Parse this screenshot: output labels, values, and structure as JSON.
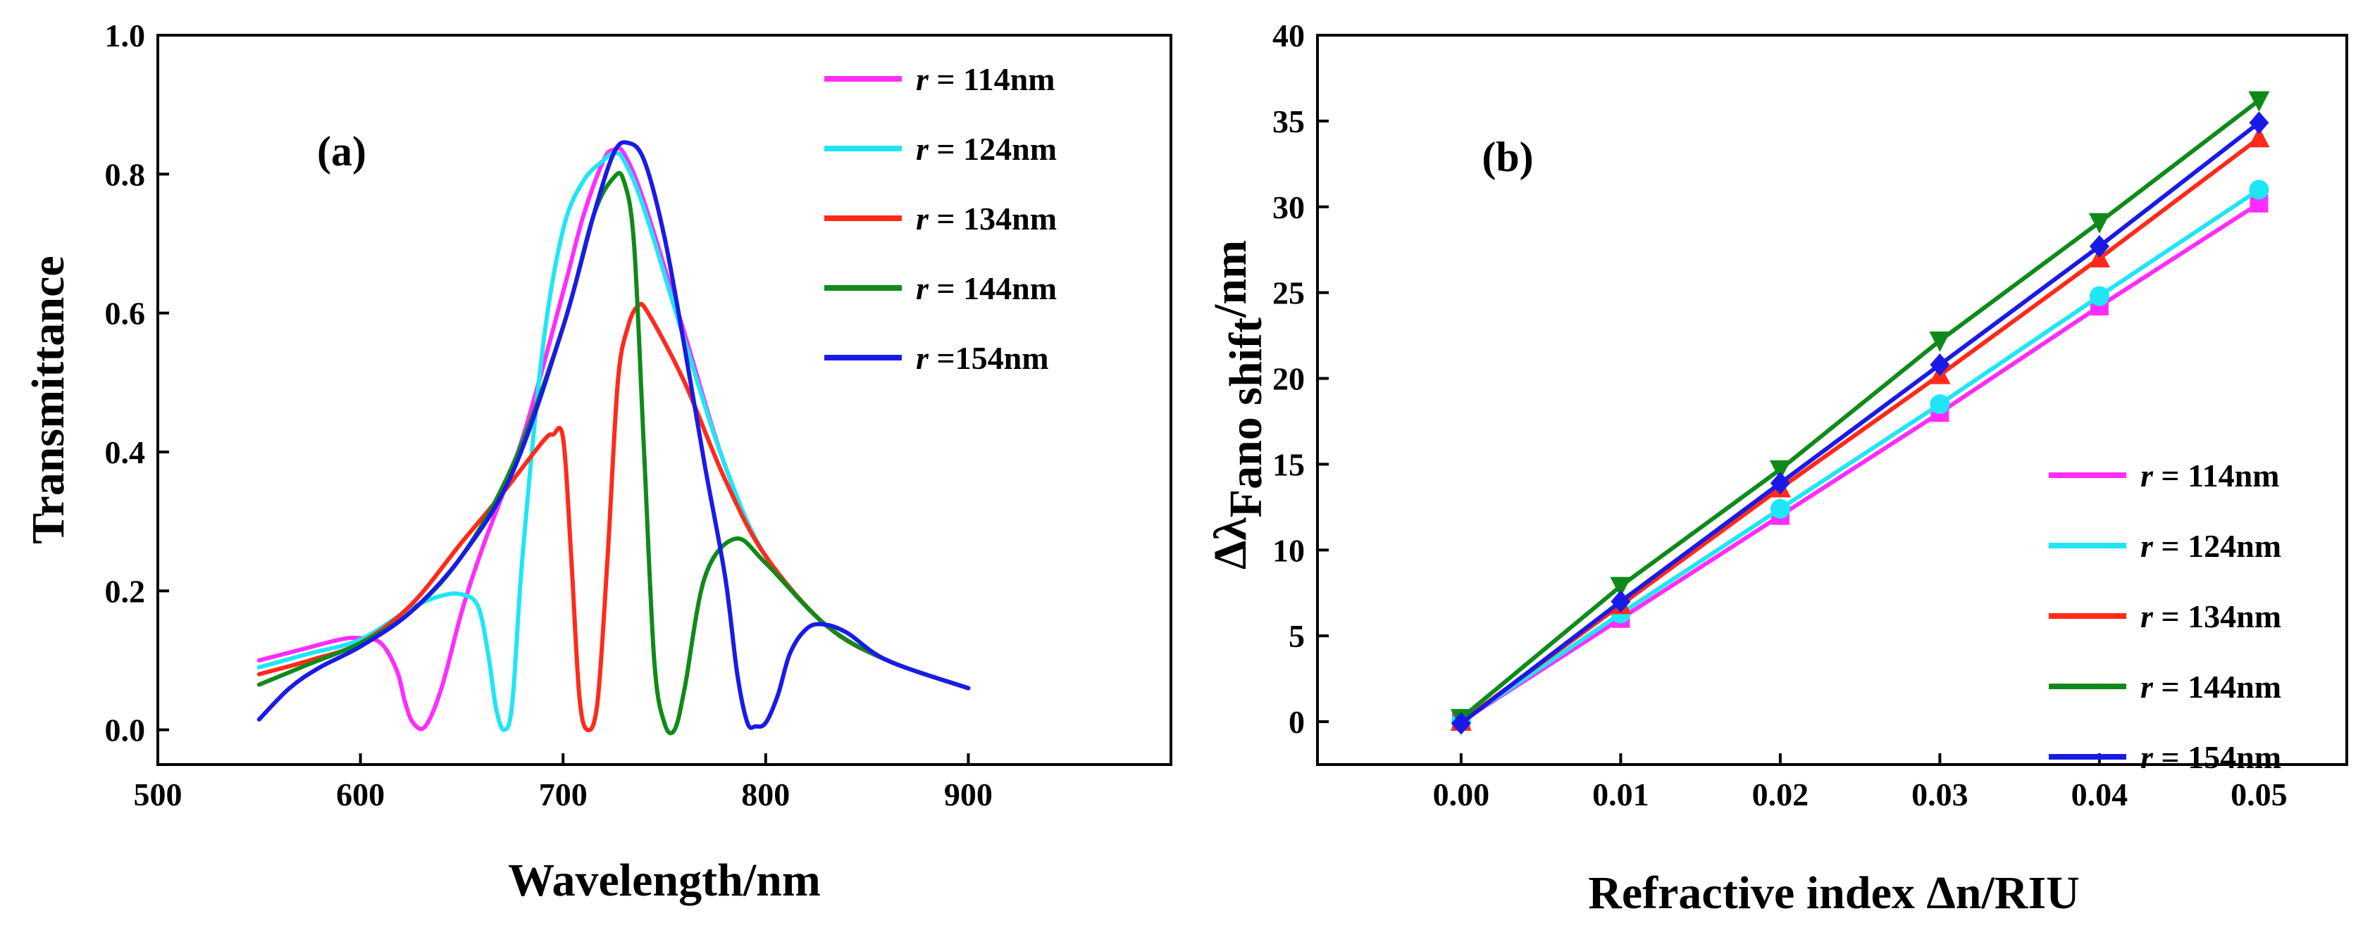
{
  "chart_data": [
    {
      "type": "line",
      "panel_label": "(a)",
      "xlabel": "Wavelength/nm",
      "ylabel": "Transmittance",
      "xlim": [
        500,
        1000
      ],
      "ylim": [
        -0.05,
        1.0
      ],
      "xticks": [
        500,
        600,
        700,
        800,
        900
      ],
      "yticks": [
        0.0,
        0.2,
        0.4,
        0.6,
        0.8,
        1.0
      ],
      "xtick_labels": [
        "500",
        "600",
        "700",
        "800",
        "900"
      ],
      "ytick_labels": [
        "0.0",
        "0.2",
        "0.4",
        "0.6",
        "0.8",
        "1.0"
      ],
      "legend_position": "top-right",
      "series": [
        {
          "name": "r = 114nm",
          "prefix": "r",
          "suffix": " = 114nm",
          "color": "#ff2cff",
          "x": [
            550,
            570,
            590,
            600,
            610,
            618,
            622,
            626,
            632,
            640,
            650,
            660,
            680,
            700,
            710,
            720,
            725,
            730,
            740,
            760,
            780,
            800,
            830,
            860,
            900
          ],
          "y": [
            0.1,
            0.115,
            0.13,
            0.132,
            0.125,
            0.085,
            0.04,
            0.01,
            0.005,
            0.06,
            0.17,
            0.26,
            0.42,
            0.63,
            0.74,
            0.82,
            0.835,
            0.83,
            0.76,
            0.57,
            0.38,
            0.25,
            0.15,
            0.1,
            0.06
          ]
        },
        {
          "name": "r = 124nm",
          "prefix": "r",
          "suffix": " = 124nm",
          "color": "#1ee6f5",
          "x": [
            550,
            575,
            600,
            625,
            640,
            650,
            658,
            663,
            667,
            671,
            675,
            680,
            690,
            700,
            710,
            720,
            725,
            730,
            740,
            760,
            780,
            800,
            830,
            860,
            900
          ],
          "y": [
            0.09,
            0.11,
            0.13,
            0.175,
            0.193,
            0.195,
            0.178,
            0.11,
            0.03,
            0.0,
            0.04,
            0.25,
            0.55,
            0.72,
            0.79,
            0.82,
            0.83,
            0.82,
            0.75,
            0.56,
            0.38,
            0.25,
            0.15,
            0.1,
            0.06
          ]
        },
        {
          "name": "r = 134nm",
          "prefix": "r",
          "suffix": " = 134nm",
          "color": "#ff2a1a",
          "x": [
            550,
            575,
            600,
            625,
            650,
            670,
            690,
            695,
            700,
            704,
            708,
            712,
            717,
            722,
            727,
            732,
            737,
            742,
            760,
            780,
            800,
            830,
            860,
            900
          ],
          "y": [
            0.08,
            0.1,
            0.125,
            0.18,
            0.27,
            0.34,
            0.415,
            0.425,
            0.42,
            0.25,
            0.05,
            0.0,
            0.04,
            0.25,
            0.5,
            0.58,
            0.61,
            0.6,
            0.5,
            0.36,
            0.25,
            0.15,
            0.1,
            0.06
          ]
        },
        {
          "name": "r = 144nm",
          "prefix": "r",
          "suffix": " = 144nm",
          "color": "#0f8a1a",
          "x": [
            550,
            575,
            600,
            625,
            650,
            675,
            700,
            715,
            725,
            730,
            735,
            740,
            745,
            750,
            755,
            760,
            770,
            785,
            800,
            830,
            860,
            900
          ],
          "y": [
            0.065,
            0.095,
            0.125,
            0.17,
            0.25,
            0.38,
            0.58,
            0.74,
            0.795,
            0.79,
            0.7,
            0.4,
            0.1,
            0.01,
            0.0,
            0.06,
            0.22,
            0.275,
            0.24,
            0.15,
            0.1,
            0.06
          ]
        },
        {
          "name": "r =154nm",
          "prefix": "r",
          "suffix": "  =154nm",
          "color": "#1a1ae6",
          "x": [
            550,
            565,
            580,
            600,
            625,
            650,
            675,
            700,
            715,
            725,
            732,
            740,
            750,
            760,
            770,
            780,
            786,
            791,
            795,
            800,
            806,
            812,
            820,
            828,
            840,
            860,
            900
          ],
          "y": [
            0.015,
            0.06,
            0.09,
            0.12,
            0.17,
            0.25,
            0.37,
            0.58,
            0.74,
            0.83,
            0.845,
            0.82,
            0.71,
            0.55,
            0.38,
            0.22,
            0.08,
            0.01,
            0.005,
            0.01,
            0.05,
            0.11,
            0.145,
            0.152,
            0.14,
            0.1,
            0.06
          ]
        }
      ]
    },
    {
      "type": "line",
      "panel_label": "(b)",
      "xlabel": "Refractive index Δn/RIU",
      "ylabel_main": "Δλ",
      "ylabel_sub": "Fano shift",
      "ylabel_tail": "/nm",
      "xlim": [
        -0.009,
        0.0555
      ],
      "ylim": [
        -2.5,
        40
      ],
      "xticks": [
        0.0,
        0.01,
        0.02,
        0.03,
        0.04,
        0.05
      ],
      "yticks": [
        0,
        5,
        10,
        15,
        20,
        25,
        30,
        35,
        40
      ],
      "xtick_labels": [
        "0.00",
        "0.01",
        "0.02",
        "0.03",
        "0.04",
        "0.05"
      ],
      "ytick_labels": [
        "0",
        "5",
        "10",
        "15",
        "20",
        "25",
        "30",
        "35",
        "40"
      ],
      "legend_position": "bottom-right",
      "x": [
        0.0,
        0.01,
        0.02,
        0.03,
        0.04,
        0.05
      ],
      "series": [
        {
          "name": "r = 114nm",
          "prefix": "r",
          "suffix": " = 114nm",
          "color": "#ff2cff",
          "marker": "square",
          "y": [
            0,
            6,
            12,
            18,
            24.2,
            30.2
          ]
        },
        {
          "name": "r = 124nm",
          "prefix": "r",
          "suffix": " = 124nm",
          "color": "#1ee6f5",
          "marker": "circle",
          "y": [
            0,
            6.3,
            12.4,
            18.5,
            24.8,
            31
          ]
        },
        {
          "name": "r = 134nm",
          "prefix": "r",
          "suffix": " = 134nm",
          "color": "#ff2a1a",
          "marker": "triangle-up",
          "y": [
            0,
            6.8,
            13.6,
            20.2,
            27,
            34
          ]
        },
        {
          "name": "r = 144nm",
          "prefix": "r",
          "suffix": " = 144nm",
          "color": "#0f8a1a",
          "marker": "triangle-down",
          "y": [
            0.2,
            7.9,
            14.7,
            22.2,
            29.1,
            36.2
          ]
        },
        {
          "name": "r = 154nm",
          "prefix": "r",
          "suffix": " = 154nm",
          "color": "#1a1ae6",
          "marker": "diamond",
          "y": [
            -0.1,
            7,
            13.9,
            20.8,
            27.7,
            34.9
          ]
        }
      ]
    }
  ]
}
